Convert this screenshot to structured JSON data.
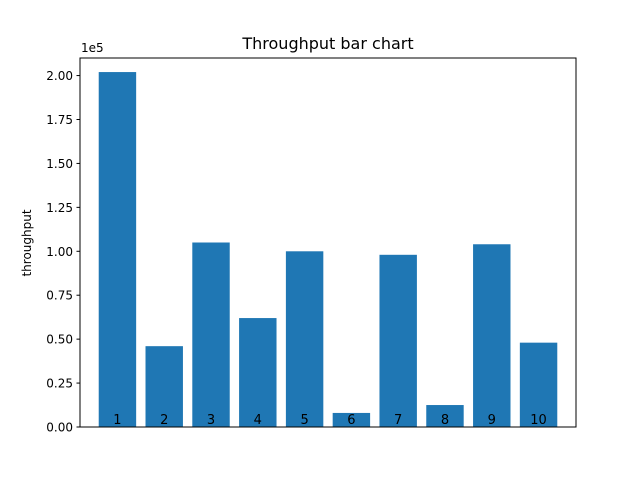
{
  "chart_data": {
    "type": "bar",
    "title": "Throughput bar chart",
    "xlabel": "",
    "ylabel": "throughput",
    "scale_label": "1e5",
    "categories": [
      "1",
      "2",
      "3",
      "4",
      "5",
      "6",
      "7",
      "8",
      "9",
      "10"
    ],
    "values": [
      202000,
      46000,
      105000,
      62000,
      100000,
      8000,
      98000,
      12500,
      104000,
      48000
    ],
    "ylim": [
      0,
      210000
    ],
    "yticks": [
      0,
      25000,
      50000,
      75000,
      100000,
      125000,
      150000,
      175000,
      200000
    ],
    "ytick_labels": [
      "0.00",
      "0.25",
      "0.50",
      "0.75",
      "1.00",
      "1.25",
      "1.50",
      "1.75",
      "2.00"
    ],
    "x_ticks_visible": false,
    "bar_labels_inside_bottom": true,
    "grid": false,
    "legend": "none",
    "bar_color": "#1f77b4"
  }
}
